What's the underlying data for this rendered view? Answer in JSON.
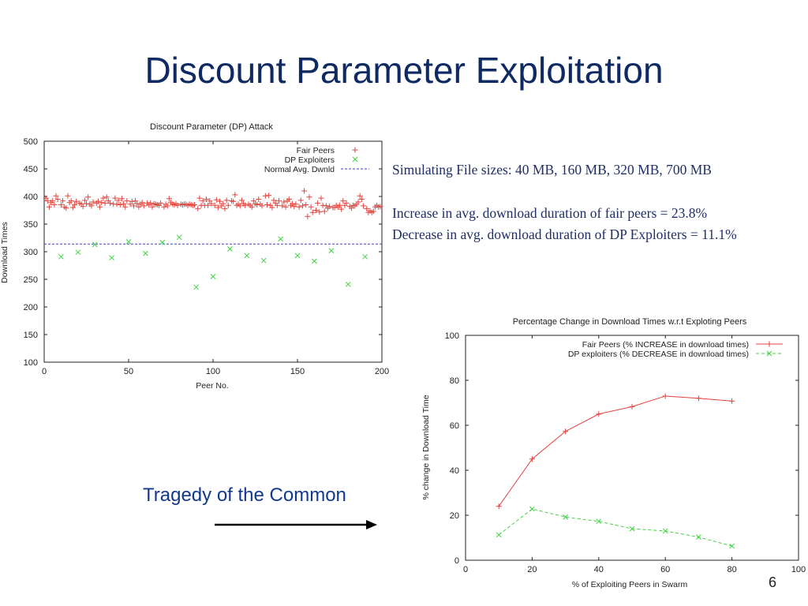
{
  "slide": {
    "title": "Discount Parameter Exploitation",
    "notes": [
      "Simulating File sizes: 40 MB, 160 MB, 320 MB, 700 MB",
      "Increase in avg. download duration of fair peers = 23.8%",
      "Decrease in avg. download duration of DP Exploiters = 11.1%"
    ],
    "tragedy_label": "Tragedy of the Common",
    "page_number": "6"
  },
  "colors": {
    "title": "#0f2a63",
    "fair": "#e2443e",
    "exploiter": "#3fd33f",
    "normal": "#4040c8"
  },
  "chart_data": [
    {
      "type": "scatter",
      "title": "Discount Parameter (DP) Attack",
      "xlabel": "Peer No.",
      "ylabel": "Download Times",
      "xlim": [
        0,
        200
      ],
      "ylim": [
        100,
        500
      ],
      "xticks": [
        0,
        50,
        100,
        150,
        200
      ],
      "yticks": [
        100,
        150,
        200,
        250,
        300,
        350,
        400,
        450,
        500
      ],
      "legend_position": "top-right",
      "grid": false,
      "series": [
        {
          "name": "Fair Peers",
          "marker": "plus",
          "points": [
            [
              1,
              397
            ],
            [
              2,
              392
            ],
            [
              3,
              381
            ],
            [
              4,
              389
            ],
            [
              5,
              392
            ],
            [
              6,
              385
            ],
            [
              7,
              401
            ],
            [
              8,
              395
            ],
            [
              10,
              385
            ],
            [
              11,
              392
            ],
            [
              12,
              381
            ],
            [
              13,
              379
            ],
            [
              14,
              401
            ],
            [
              15,
              389
            ],
            [
              16,
              392
            ],
            [
              17,
              380
            ],
            [
              18,
              385
            ],
            [
              19,
              391
            ],
            [
              21,
              388
            ],
            [
              22,
              386
            ],
            [
              23,
              382
            ],
            [
              24,
              393
            ],
            [
              25,
              387
            ],
            [
              26,
              399
            ],
            [
              27,
              386
            ],
            [
              28,
              383
            ],
            [
              29,
              390
            ],
            [
              31,
              388
            ],
            [
              32,
              391
            ],
            [
              33,
              381
            ],
            [
              34,
              389
            ],
            [
              35,
              397
            ],
            [
              36,
              388
            ],
            [
              37,
              399
            ],
            [
              38,
              392
            ],
            [
              39,
              388
            ],
            [
              41,
              386
            ],
            [
              42,
              397
            ],
            [
              43,
              386
            ],
            [
              44,
              393
            ],
            [
              45,
              385
            ],
            [
              46,
              396
            ],
            [
              47,
              387
            ],
            [
              48,
              381
            ],
            [
              49,
              392
            ],
            [
              51,
              386
            ],
            [
              52,
              391
            ],
            [
              53,
              383
            ],
            [
              54,
              392
            ],
            [
              55,
              387
            ],
            [
              56,
              381
            ],
            [
              57,
              386
            ],
            [
              58,
              389
            ],
            [
              59,
              383
            ],
            [
              61,
              388
            ],
            [
              62,
              385
            ],
            [
              63,
              388
            ],
            [
              64,
              381
            ],
            [
              65,
              387
            ],
            [
              66,
              386
            ],
            [
              67,
              385
            ],
            [
              68,
              384
            ],
            [
              69,
              388
            ],
            [
              71,
              381
            ],
            [
              72,
              386
            ],
            [
              73,
              383
            ],
            [
              74,
              396
            ],
            [
              75,
              389
            ],
            [
              76,
              386
            ],
            [
              77,
              385
            ],
            [
              78,
              387
            ],
            [
              79,
              384
            ],
            [
              81,
              386
            ],
            [
              82,
              385
            ],
            [
              83,
              386
            ],
            [
              84,
              386
            ],
            [
              85,
              384
            ],
            [
              86,
              386
            ],
            [
              87,
              385
            ],
            [
              88,
              384
            ],
            [
              89,
              385
            ],
            [
              91,
              378
            ],
            [
              92,
              397
            ],
            [
              93,
              384
            ],
            [
              94,
              392
            ],
            [
              95,
              384
            ],
            [
              96,
              395
            ],
            [
              97,
              384
            ],
            [
              98,
              392
            ],
            [
              99,
              387
            ],
            [
              101,
              384
            ],
            [
              102,
              394
            ],
            [
              103,
              380
            ],
            [
              104,
              391
            ],
            [
              105,
              383
            ],
            [
              106,
              387
            ],
            [
              107,
              378
            ],
            [
              108,
              393
            ],
            [
              109,
              384
            ],
            [
              111,
              392
            ],
            [
              112,
              391
            ],
            [
              113,
              403
            ],
            [
              114,
              384
            ],
            [
              115,
              386
            ],
            [
              116,
              383
            ],
            [
              117,
              393
            ],
            [
              118,
              387
            ],
            [
              119,
              384
            ],
            [
              121,
              386
            ],
            [
              122,
              384
            ],
            [
              123,
              381
            ],
            [
              124,
              392
            ],
            [
              125,
              387
            ],
            [
              126,
              385
            ],
            [
              127,
              395
            ],
            [
              128,
              386
            ],
            [
              129,
              383
            ],
            [
              131,
              401
            ],
            [
              132,
              385
            ],
            [
              133,
              402
            ],
            [
              134,
              384
            ],
            [
              135,
              380
            ],
            [
              136,
              393
            ],
            [
              137,
              388
            ],
            [
              138,
              384
            ],
            [
              139,
              392
            ],
            [
              141,
              383
            ],
            [
              142,
              390
            ],
            [
              143,
              381
            ],
            [
              144,
              392
            ],
            [
              145,
              395
            ],
            [
              146,
              384
            ],
            [
              147,
              387
            ],
            [
              148,
              382
            ],
            [
              149,
              386
            ],
            [
              151,
              381
            ],
            [
              152,
              393
            ],
            [
              153,
              383
            ],
            [
              154,
              410
            ],
            [
              155,
              385
            ],
            [
              156,
              364
            ],
            [
              157,
              399
            ],
            [
              158,
              381
            ],
            [
              159,
              371
            ],
            [
              161,
              375
            ],
            [
              162,
              388
            ],
            [
              163,
              372
            ],
            [
              164,
              397
            ],
            [
              165,
              384
            ],
            [
              166,
              373
            ],
            [
              167,
              383
            ],
            [
              168,
              379
            ],
            [
              169,
              382
            ],
            [
              171,
              380
            ],
            [
              172,
              380
            ],
            [
              173,
              384
            ],
            [
              174,
              381
            ],
            [
              175,
              384
            ],
            [
              176,
              377
            ],
            [
              177,
              392
            ],
            [
              178,
              384
            ],
            [
              179,
              388
            ],
            [
              181,
              382
            ],
            [
              182,
              379
            ],
            [
              183,
              384
            ],
            [
              184,
              383
            ],
            [
              185,
              386
            ],
            [
              186,
              390
            ],
            [
              187,
              401
            ],
            [
              188,
              395
            ],
            [
              189,
              383
            ],
            [
              191,
              378
            ],
            [
              192,
              371
            ],
            [
              193,
              374
            ],
            [
              194,
              371
            ],
            [
              195,
              373
            ],
            [
              196,
              381
            ],
            [
              197,
              384
            ],
            [
              198,
              381
            ],
            [
              199,
              382
            ]
          ]
        },
        {
          "name": "DP Exploiters",
          "marker": "cross",
          "points": [
            [
              10,
              291
            ],
            [
              20,
              299
            ],
            [
              30,
              313
            ],
            [
              40,
              289
            ],
            [
              50,
              318
            ],
            [
              60,
              297
            ],
            [
              70,
              317
            ],
            [
              80,
              326
            ],
            [
              90,
              236
            ],
            [
              100,
              255
            ],
            [
              110,
              305
            ],
            [
              120,
              293
            ],
            [
              130,
              284
            ],
            [
              140,
              323
            ],
            [
              150,
              293
            ],
            [
              160,
              283
            ],
            [
              170,
              302
            ],
            [
              180,
              241
            ],
            [
              190,
              291
            ]
          ]
        },
        {
          "name": "Normal Avg. Dwnld",
          "style": "dashed",
          "value": 314
        }
      ]
    },
    {
      "type": "line",
      "title": "Percentage Change in Download Times w.r.t Exploting Peers",
      "xlabel": "% of Exploiting Peers in Swarm",
      "ylabel": "% change in Download Time",
      "xlim": [
        0,
        100
      ],
      "ylim": [
        0,
        100
      ],
      "xticks": [
        0,
        20,
        40,
        60,
        80,
        100
      ],
      "yticks": [
        0,
        20,
        40,
        60,
        80,
        100
      ],
      "legend_position": "top-right",
      "grid": false,
      "x": [
        10,
        20,
        30,
        40,
        50,
        60,
        70,
        80
      ],
      "series": [
        {
          "name": "Fair Peers (% INCREASE in download times)",
          "style": "solid",
          "marker": "plus",
          "values": [
            24,
            45,
            57.3,
            65,
            68.3,
            73,
            72,
            70.8
          ]
        },
        {
          "name": "DP exploiters (% DECREASE in download times)",
          "style": "dashed",
          "marker": "cross",
          "values": [
            11.3,
            22.8,
            19.2,
            17.3,
            14,
            13,
            10.3,
            6.3
          ]
        }
      ]
    }
  ]
}
